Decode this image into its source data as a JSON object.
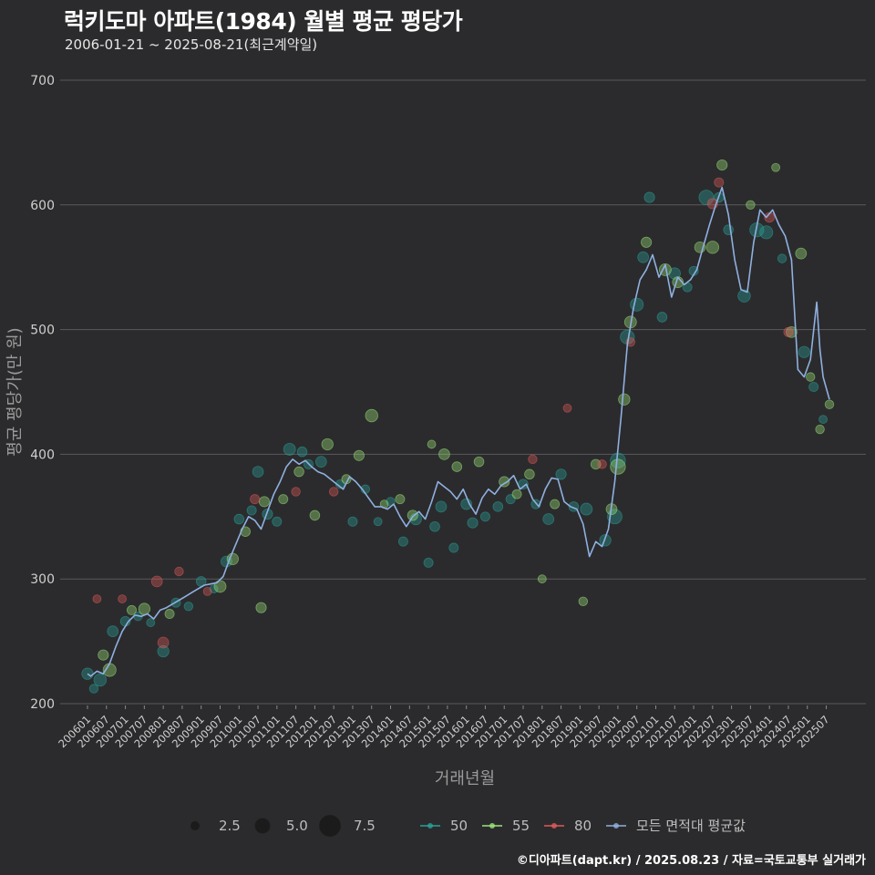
{
  "header": {
    "title": "럭키도마 아파트(1984) 월별 평균 평당가",
    "subtitle": "2006-01-21 ~ 2025-08-21(최근계약일)"
  },
  "footer": "©디아파트(dapt.kr) / 2025.08.23 / 자료=국토교통부 실거래가",
  "colors": {
    "background": "#2b2b2d",
    "grid": "#5a5a5c",
    "series_50": "#2aa198",
    "series_55": "#9be37a",
    "series_80": "#e05a5a",
    "mean_line": "#8fb0e0",
    "size_legend": "#1a1a1a"
  },
  "chart_data": {
    "type": "scatter",
    "xlabel": "거래년월",
    "ylabel": "평균 평당가(만 원)",
    "ylim": [
      200,
      700
    ],
    "yticks": [
      200,
      300,
      400,
      500,
      600,
      700
    ],
    "x_range": [
      "2006-01",
      "2025-08"
    ],
    "grid": true,
    "xticks": [
      "200601",
      "200607",
      "200701",
      "200707",
      "200801",
      "200807",
      "200901",
      "200907",
      "201001",
      "201007",
      "201101",
      "201107",
      "201201",
      "201207",
      "201301",
      "201307",
      "201401",
      "201407",
      "201501",
      "201507",
      "201601",
      "201607",
      "201701",
      "201707",
      "201801",
      "201807",
      "201901",
      "201907",
      "202001",
      "202007",
      "202101",
      "202107",
      "202201",
      "202207",
      "202301",
      "202307",
      "202401",
      "202407",
      "202501",
      "202507"
    ],
    "size_legend": {
      "values": [
        2.5,
        5.0,
        7.5
      ]
    },
    "legend": [
      "50",
      "55",
      "80",
      "모든 면적대 평균값"
    ],
    "legend_position": "bottom",
    "mean_line": [
      [
        "2006-01",
        224
      ],
      [
        "2006-02",
        222
      ],
      [
        "2006-04",
        226
      ],
      [
        "2006-06",
        224
      ],
      [
        "2006-08",
        232
      ],
      [
        "2006-10",
        246
      ],
      [
        "2006-12",
        258
      ],
      [
        "2007-02",
        266
      ],
      [
        "2007-04",
        271
      ],
      [
        "2007-06",
        270
      ],
      [
        "2007-08",
        272
      ],
      [
        "2007-10",
        268
      ],
      [
        "2007-12",
        275
      ],
      [
        "2008-02",
        277
      ],
      [
        "2008-04",
        280
      ],
      [
        "2008-06",
        283
      ],
      [
        "2008-08",
        286
      ],
      [
        "2008-10",
        289
      ],
      [
        "2008-12",
        292
      ],
      [
        "2009-02",
        295
      ],
      [
        "2009-04",
        296
      ],
      [
        "2009-06",
        297
      ],
      [
        "2009-08",
        302
      ],
      [
        "2009-10",
        316
      ],
      [
        "2009-12",
        328
      ],
      [
        "2010-02",
        340
      ],
      [
        "2010-04",
        350
      ],
      [
        "2010-06",
        347
      ],
      [
        "2010-08",
        340
      ],
      [
        "2010-10",
        354
      ],
      [
        "2010-12",
        368
      ],
      [
        "2011-02",
        378
      ],
      [
        "2011-04",
        390
      ],
      [
        "2011-06",
        396
      ],
      [
        "2011-08",
        392
      ],
      [
        "2011-10",
        395
      ],
      [
        "2011-12",
        390
      ],
      [
        "2012-02",
        386
      ],
      [
        "2012-04",
        384
      ],
      [
        "2012-06",
        380
      ],
      [
        "2012-08",
        376
      ],
      [
        "2012-10",
        372
      ],
      [
        "2012-12",
        382
      ],
      [
        "2013-02",
        378
      ],
      [
        "2013-04",
        372
      ],
      [
        "2013-06",
        365
      ],
      [
        "2013-08",
        358
      ],
      [
        "2013-10",
        358
      ],
      [
        "2013-12",
        356
      ],
      [
        "2014-02",
        360
      ],
      [
        "2014-04",
        350
      ],
      [
        "2014-06",
        342
      ],
      [
        "2014-08",
        350
      ],
      [
        "2014-10",
        354
      ],
      [
        "2014-12",
        348
      ],
      [
        "2015-02",
        362
      ],
      [
        "2015-04",
        378
      ],
      [
        "2015-06",
        374
      ],
      [
        "2015-08",
        370
      ],
      [
        "2015-10",
        364
      ],
      [
        "2015-12",
        372
      ],
      [
        "2016-02",
        360
      ],
      [
        "2016-04",
        352
      ],
      [
        "2016-06",
        365
      ],
      [
        "2016-08",
        372
      ],
      [
        "2016-10",
        368
      ],
      [
        "2016-12",
        375
      ],
      [
        "2017-02",
        378
      ],
      [
        "2017-04",
        383
      ],
      [
        "2017-06",
        372
      ],
      [
        "2017-08",
        376
      ],
      [
        "2017-10",
        364
      ],
      [
        "2017-12",
        358
      ],
      [
        "2018-02",
        372
      ],
      [
        "2018-04",
        381
      ],
      [
        "2018-06",
        380
      ],
      [
        "2018-08",
        362
      ],
      [
        "2018-10",
        358
      ],
      [
        "2018-12",
        356
      ],
      [
        "2019-02",
        344
      ],
      [
        "2019-04",
        318
      ],
      [
        "2019-06",
        330
      ],
      [
        "2019-08",
        326
      ],
      [
        "2019-10",
        340
      ],
      [
        "2019-12",
        378
      ],
      [
        "2020-02",
        430
      ],
      [
        "2020-04",
        488
      ],
      [
        "2020-06",
        518
      ],
      [
        "2020-08",
        540
      ],
      [
        "2020-10",
        548
      ],
      [
        "2020-12",
        560
      ],
      [
        "2021-02",
        542
      ],
      [
        "2021-04",
        552
      ],
      [
        "2021-06",
        526
      ],
      [
        "2021-08",
        542
      ],
      [
        "2021-10",
        536
      ],
      [
        "2021-12",
        540
      ],
      [
        "2022-02",
        548
      ],
      [
        "2022-04",
        566
      ],
      [
        "2022-06",
        584
      ],
      [
        "2022-08",
        600
      ],
      [
        "2022-10",
        614
      ],
      [
        "2022-12",
        592
      ],
      [
        "2023-02",
        556
      ],
      [
        "2023-04",
        532
      ],
      [
        "2023-06",
        530
      ],
      [
        "2023-08",
        570
      ],
      [
        "2023-10",
        596
      ],
      [
        "2023-12",
        590
      ],
      [
        "2024-02",
        596
      ],
      [
        "2024-04",
        584
      ],
      [
        "2024-06",
        575
      ],
      [
        "2024-08",
        556
      ],
      [
        "2024-10",
        468
      ],
      [
        "2024-12",
        462
      ],
      [
        "2025-02",
        476
      ],
      [
        "2025-04",
        522
      ],
      [
        "2025-05",
        484
      ],
      [
        "2025-06",
        462
      ],
      [
        "2025-08",
        444
      ]
    ],
    "series": [
      {
        "name": "50",
        "points": [
          [
            "2006-01",
            224,
            3.2
          ],
          [
            "2006-03",
            212,
            2.2
          ],
          [
            "2006-05",
            219,
            3.6
          ],
          [
            "2006-09",
            258,
            3.0
          ],
          [
            "2007-01",
            266,
            2.6
          ],
          [
            "2007-05",
            270,
            2.2
          ],
          [
            "2007-09",
            265,
            2.0
          ],
          [
            "2008-01",
            242,
            3.2
          ],
          [
            "2008-05",
            281,
            2.4
          ],
          [
            "2008-09",
            278,
            2.2
          ],
          [
            "2009-01",
            298,
            2.6
          ],
          [
            "2009-05",
            292,
            2.0
          ],
          [
            "2009-09",
            314,
            3.0
          ],
          [
            "2010-01",
            348,
            2.6
          ],
          [
            "2010-05",
            355,
            2.4
          ],
          [
            "2010-07",
            386,
            3.0
          ],
          [
            "2010-10",
            352,
            2.8
          ],
          [
            "2011-01",
            346,
            2.4
          ],
          [
            "2011-05",
            404,
            3.4
          ],
          [
            "2011-09",
            402,
            2.6
          ],
          [
            "2011-11",
            392,
            2.4
          ],
          [
            "2012-03",
            394,
            3.0
          ],
          [
            "2012-09",
            376,
            2.2
          ],
          [
            "2013-01",
            346,
            2.4
          ],
          [
            "2013-05",
            372,
            2.2
          ],
          [
            "2013-09",
            346,
            2.0
          ],
          [
            "2014-01",
            362,
            2.2
          ],
          [
            "2014-05",
            330,
            2.4
          ],
          [
            "2014-09",
            348,
            3.2
          ],
          [
            "2015-01",
            313,
            2.4
          ],
          [
            "2015-03",
            342,
            2.6
          ],
          [
            "2015-05",
            358,
            3.0
          ],
          [
            "2015-09",
            325,
            2.4
          ],
          [
            "2016-01",
            360,
            3.0
          ],
          [
            "2016-03",
            345,
            2.8
          ],
          [
            "2016-07",
            350,
            2.4
          ],
          [
            "2016-11",
            358,
            2.6
          ],
          [
            "2017-03",
            364,
            2.4
          ],
          [
            "2017-07",
            376,
            2.6
          ],
          [
            "2017-11",
            360,
            2.4
          ],
          [
            "2018-03",
            348,
            3.0
          ],
          [
            "2018-07",
            384,
            2.8
          ],
          [
            "2018-11",
            358,
            2.6
          ],
          [
            "2019-03",
            356,
            3.4
          ],
          [
            "2019-09",
            331,
            3.2
          ],
          [
            "2019-12",
            350,
            4.4
          ],
          [
            "2020-01",
            395,
            4.6
          ],
          [
            "2020-04",
            494,
            4.2
          ],
          [
            "2020-07",
            520,
            3.8
          ],
          [
            "2020-09",
            558,
            3.0
          ],
          [
            "2020-11",
            606,
            2.8
          ],
          [
            "2021-03",
            510,
            2.6
          ],
          [
            "2021-07",
            545,
            3.2
          ],
          [
            "2021-11",
            534,
            2.4
          ],
          [
            "2022-01",
            547,
            2.4
          ],
          [
            "2022-05",
            606,
            4.4
          ],
          [
            "2022-09",
            606,
            2.6
          ],
          [
            "2022-12",
            580,
            2.6
          ],
          [
            "2023-05",
            527,
            3.6
          ],
          [
            "2023-09",
            580,
            4.2
          ],
          [
            "2023-12",
            578,
            3.8
          ],
          [
            "2024-05",
            557,
            2.2
          ],
          [
            "2024-12",
            482,
            3.2
          ],
          [
            "2025-03",
            454,
            2.4
          ],
          [
            "2025-06",
            428,
            2.0
          ]
        ]
      },
      {
        "name": "55",
        "points": [
          [
            "2006-06",
            239,
            2.8
          ],
          [
            "2006-08",
            227,
            3.8
          ],
          [
            "2007-03",
            275,
            2.4
          ],
          [
            "2007-07",
            276,
            3.2
          ],
          [
            "2008-03",
            272,
            2.4
          ],
          [
            "2009-07",
            294,
            3.4
          ],
          [
            "2009-11",
            316,
            3.2
          ],
          [
            "2010-03",
            338,
            2.6
          ],
          [
            "2010-08",
            277,
            2.8
          ],
          [
            "2010-09",
            362,
            2.8
          ],
          [
            "2011-03",
            364,
            2.4
          ],
          [
            "2011-08",
            386,
            2.6
          ],
          [
            "2012-01",
            351,
            2.6
          ],
          [
            "2012-05",
            408,
            3.2
          ],
          [
            "2012-11",
            380,
            2.4
          ],
          [
            "2013-03",
            399,
            2.8
          ],
          [
            "2013-07",
            431,
            3.6
          ],
          [
            "2013-11",
            360,
            2.0
          ],
          [
            "2014-04",
            364,
            2.4
          ],
          [
            "2014-08",
            351,
            2.8
          ],
          [
            "2015-02",
            408,
            2.0
          ],
          [
            "2015-06",
            400,
            3.0
          ],
          [
            "2015-10",
            390,
            2.6
          ],
          [
            "2016-05",
            394,
            2.6
          ],
          [
            "2017-01",
            378,
            2.8
          ],
          [
            "2017-05",
            368,
            2.4
          ],
          [
            "2017-09",
            384,
            2.6
          ],
          [
            "2018-01",
            300,
            2.0
          ],
          [
            "2018-05",
            360,
            2.4
          ],
          [
            "2019-02",
            282,
            2.2
          ],
          [
            "2019-06",
            392,
            2.6
          ],
          [
            "2019-11",
            356,
            3.0
          ],
          [
            "2020-01",
            390,
            4.6
          ],
          [
            "2020-03",
            444,
            3.2
          ],
          [
            "2020-05",
            506,
            3.4
          ],
          [
            "2020-10",
            570,
            2.8
          ],
          [
            "2021-04",
            548,
            3.4
          ],
          [
            "2021-08",
            538,
            3.0
          ],
          [
            "2022-03",
            566,
            3.0
          ],
          [
            "2022-07",
            566,
            3.6
          ],
          [
            "2022-10",
            632,
            2.8
          ],
          [
            "2023-07",
            600,
            2.2
          ],
          [
            "2024-03",
            630,
            2.0
          ],
          [
            "2024-08",
            498,
            3.0
          ],
          [
            "2024-11",
            561,
            3.0
          ],
          [
            "2025-02",
            462,
            2.2
          ],
          [
            "2025-05",
            420,
            2.2
          ],
          [
            "2025-08",
            440,
            2.2
          ]
        ]
      },
      {
        "name": "80",
        "points": [
          [
            "2006-04",
            284,
            2.0
          ],
          [
            "2006-12",
            284,
            2.0
          ],
          [
            "2007-11",
            298,
            3.0
          ],
          [
            "2008-01",
            249,
            3.0
          ],
          [
            "2008-06",
            306,
            2.2
          ],
          [
            "2009-03",
            290,
            2.0
          ],
          [
            "2010-06",
            364,
            2.4
          ],
          [
            "2011-07",
            370,
            2.2
          ],
          [
            "2012-07",
            370,
            2.2
          ],
          [
            "2017-10",
            396,
            2.2
          ],
          [
            "2018-09",
            437,
            2.0
          ],
          [
            "2019-08",
            392,
            2.2
          ],
          [
            "2020-05",
            490,
            2.2
          ],
          [
            "2022-07",
            601,
            2.8
          ],
          [
            "2022-09",
            618,
            2.4
          ],
          [
            "2024-01",
            590,
            2.6
          ],
          [
            "2024-07",
            498,
            2.4
          ]
        ]
      }
    ]
  }
}
